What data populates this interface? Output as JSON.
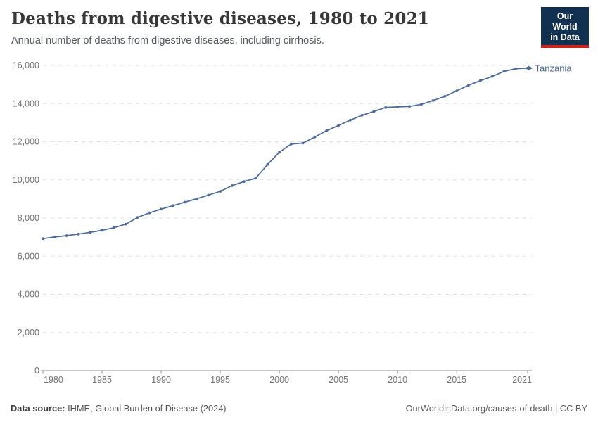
{
  "header": {
    "title": "Deaths from digestive diseases, 1980 to 2021",
    "subtitle": "Annual number of deaths from digestive diseases, including cirrhosis.",
    "logo_line1": "Our World",
    "logo_line2": "in Data"
  },
  "chart_data": {
    "type": "line",
    "title": "Deaths from digestive diseases, 1980 to 2021",
    "xlabel": "",
    "ylabel": "",
    "xlim": [
      1980,
      2021
    ],
    "ylim": [
      0,
      16000
    ],
    "xticks": [
      1980,
      1985,
      1990,
      1995,
      2000,
      2005,
      2010,
      2015,
      2021
    ],
    "yticks": [
      0,
      2000,
      4000,
      6000,
      8000,
      10000,
      12000,
      14000,
      16000
    ],
    "grid": "horizontal-dashed",
    "legend_position": "end-of-line-label",
    "series": [
      {
        "name": "Tanzania",
        "color": "#4C6A9C",
        "x": [
          1980,
          1981,
          1982,
          1983,
          1984,
          1985,
          1986,
          1987,
          1988,
          1989,
          1990,
          1991,
          1992,
          1993,
          1994,
          1995,
          1996,
          1997,
          1998,
          1999,
          2000,
          2001,
          2002,
          2003,
          2004,
          2005,
          2006,
          2007,
          2008,
          2009,
          2010,
          2011,
          2012,
          2013,
          2014,
          2015,
          2016,
          2017,
          2018,
          2019,
          2020,
          2021
        ],
        "values": [
          6920,
          7010,
          7080,
          7160,
          7250,
          7360,
          7490,
          7680,
          8030,
          8270,
          8470,
          8650,
          8830,
          9010,
          9200,
          9400,
          9700,
          9910,
          10090,
          10810,
          11450,
          11880,
          11930,
          12250,
          12580,
          12850,
          13130,
          13390,
          13590,
          13800,
          13830,
          13850,
          13960,
          14160,
          14380,
          14670,
          14960,
          15200,
          15420,
          15690,
          15830,
          15860
        ]
      }
    ]
  },
  "footer": {
    "source_label": "Data source:",
    "source_value": "IHME, Global Burden of Disease (2024)",
    "credit": "OurWorldinData.org/causes-of-death | CC BY"
  },
  "colors": {
    "line": "#4C6A9C",
    "grid": "#dfdfdf",
    "axis": "#8f8f8f",
    "tick_label": "#737373",
    "logo_bg": "#12304f",
    "logo_accent": "#cb2420"
  }
}
